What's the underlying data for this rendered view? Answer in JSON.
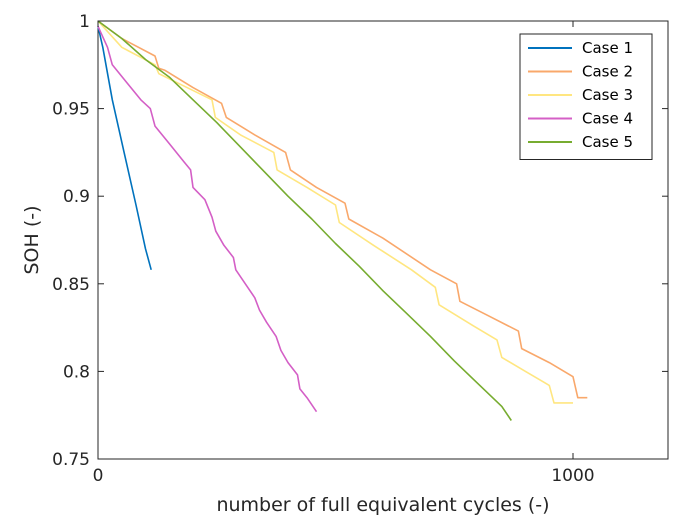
{
  "chart_data": {
    "type": "line",
    "xlabel": "number of full equivalent cycles (-)",
    "ylabel": "SOH (-)",
    "xlim": [
      0,
      1200
    ],
    "ylim": [
      0.75,
      1
    ],
    "xticks": [
      0,
      1000
    ],
    "xtick_labels": [
      "0",
      "1000"
    ],
    "yticks": [
      0.75,
      0.8,
      0.85,
      0.9,
      0.95,
      1
    ],
    "ytick_labels": [
      "0.75",
      "0.8",
      "0.85",
      "0.9",
      "0.95",
      "1"
    ],
    "grid": false,
    "legend_position": "top-right",
    "series": [
      {
        "name": "Case 1",
        "color": "#0072bd",
        "x": [
          0,
          10,
          30,
          55,
          80,
          100,
          112
        ],
        "y": [
          0.997,
          0.985,
          0.955,
          0.925,
          0.895,
          0.87,
          0.858
        ]
      },
      {
        "name": "Case 2",
        "color": "#f9a86b",
        "x": [
          0,
          50,
          120,
          128,
          140,
          200,
          260,
          270,
          330,
          395,
          405,
          460,
          520,
          528,
          600,
          700,
          755,
          762,
          820,
          885,
          892,
          950,
          1000,
          1010,
          1030
        ],
        "y": [
          1.0,
          0.99,
          0.98,
          0.973,
          0.972,
          0.962,
          0.953,
          0.945,
          0.935,
          0.925,
          0.915,
          0.905,
          0.896,
          0.887,
          0.876,
          0.858,
          0.85,
          0.84,
          0.832,
          0.823,
          0.813,
          0.805,
          0.797,
          0.785,
          0.785
        ]
      },
      {
        "name": "Case 3",
        "color": "#ffe680",
        "x": [
          0,
          50,
          120,
          128,
          180,
          240,
          247,
          300,
          370,
          377,
          440,
          500,
          508,
          580,
          660,
          710,
          718,
          790,
          840,
          850,
          900,
          950,
          960,
          1000
        ],
        "y": [
          1.0,
          0.985,
          0.975,
          0.97,
          0.963,
          0.955,
          0.945,
          0.935,
          0.925,
          0.915,
          0.905,
          0.895,
          0.885,
          0.872,
          0.858,
          0.848,
          0.838,
          0.826,
          0.818,
          0.808,
          0.8,
          0.792,
          0.782,
          0.782
        ]
      },
      {
        "name": "Case 4",
        "color": "#d45fc6",
        "x": [
          0,
          20,
          30,
          60,
          90,
          110,
          120,
          150,
          180,
          195,
          200,
          225,
          240,
          248,
          265,
          285,
          290,
          310,
          330,
          340,
          355,
          375,
          385,
          400,
          420,
          425,
          440,
          460
        ],
        "y": [
          0.997,
          0.985,
          0.975,
          0.965,
          0.955,
          0.95,
          0.94,
          0.93,
          0.92,
          0.915,
          0.905,
          0.898,
          0.888,
          0.88,
          0.872,
          0.865,
          0.858,
          0.85,
          0.842,
          0.835,
          0.828,
          0.82,
          0.812,
          0.805,
          0.798,
          0.79,
          0.785,
          0.777
        ]
      },
      {
        "name": "Case 5",
        "color": "#77ac30",
        "x": [
          0,
          50,
          100,
          150,
          200,
          250,
          300,
          350,
          400,
          450,
          500,
          550,
          600,
          650,
          700,
          750,
          800,
          850,
          870
        ],
        "y": [
          1.0,
          0.99,
          0.978,
          0.968,
          0.955,
          0.942,
          0.928,
          0.914,
          0.9,
          0.887,
          0.873,
          0.86,
          0.846,
          0.833,
          0.82,
          0.806,
          0.793,
          0.78,
          0.772
        ]
      }
    ]
  }
}
